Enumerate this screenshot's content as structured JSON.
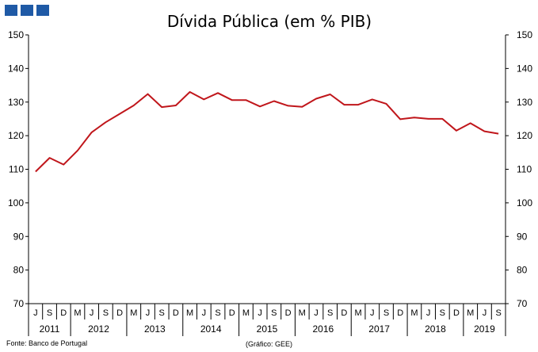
{
  "header": {
    "icon_name": "three-blue-squares-logo",
    "color": "#1f5aa6"
  },
  "footer": {
    "source": "Fonte: Banco de Portugal",
    "credit": "(Gráfico: GEE)"
  },
  "chart_data": {
    "type": "line",
    "title": "Dívida Pública (em % PIB)",
    "ylim": [
      70,
      150
    ],
    "y_ticks": [
      70,
      80,
      90,
      100,
      110,
      120,
      130,
      140,
      150
    ],
    "y_axis_both_sides": true,
    "grid": false,
    "legend": "none",
    "line_color": "#c0161b",
    "x_month_labels": [
      "J",
      "S",
      "D",
      "M",
      "J",
      "S",
      "D",
      "M",
      "J",
      "S",
      "D",
      "M",
      "J",
      "S",
      "D",
      "M",
      "J",
      "S",
      "D",
      "M",
      "J",
      "S",
      "D",
      "M",
      "J",
      "S",
      "D",
      "M",
      "J",
      "S",
      "D",
      "M",
      "J",
      "S"
    ],
    "x_year_groups": [
      {
        "year": "2011",
        "start": 0,
        "count": 3
      },
      {
        "year": "2012",
        "start": 3,
        "count": 4
      },
      {
        "year": "2013",
        "start": 7,
        "count": 4
      },
      {
        "year": "2014",
        "start": 11,
        "count": 4
      },
      {
        "year": "2015",
        "start": 15,
        "count": 4
      },
      {
        "year": "2016",
        "start": 19,
        "count": 4
      },
      {
        "year": "2017",
        "start": 23,
        "count": 4
      },
      {
        "year": "2018",
        "start": 27,
        "count": 4
      },
      {
        "year": "2019",
        "start": 31,
        "count": 3
      }
    ],
    "series": [
      {
        "values": [
          109.3,
          113.4,
          111.4,
          115.6,
          121.0,
          124.0,
          126.5,
          129.0,
          132.4,
          128.5,
          129.0,
          133.0,
          130.8,
          132.7,
          130.6,
          130.6,
          128.7,
          130.3,
          128.9,
          128.6,
          131.0,
          132.3,
          129.2,
          129.2,
          130.8,
          129.5,
          124.9,
          125.4,
          125.0,
          125.0,
          121.5,
          123.7,
          121.3,
          120.6
        ]
      }
    ]
  }
}
